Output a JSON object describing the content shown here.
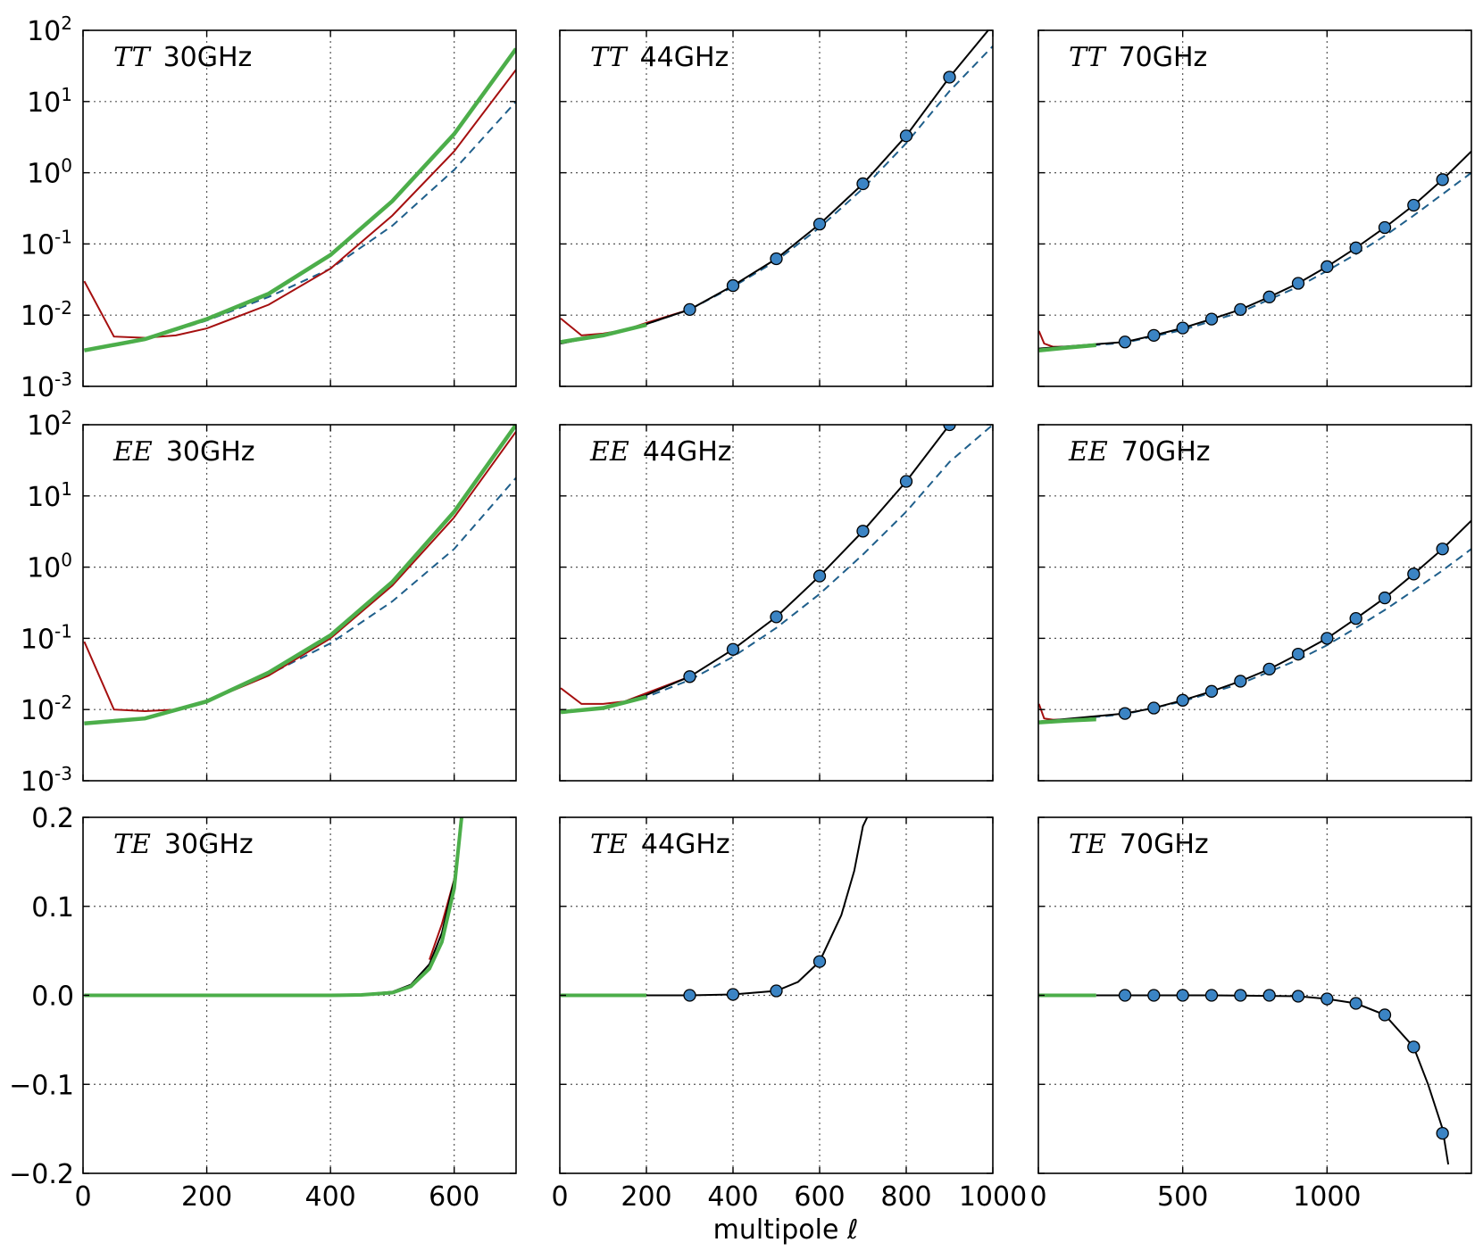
{
  "xlabel": "multipole ℓ",
  "colors": {
    "red_curve": "#a50f0f",
    "green_curve": "#4cae4a",
    "black_curve": "#000000",
    "dashed_curve": "#1f5f8b",
    "marker_fill": "#3b84c4",
    "grid": "#555555"
  },
  "chart_data": [
    {
      "type": "line",
      "spectrum": "TT",
      "freq": "30GHz",
      "row": 0,
      "col": 0,
      "yscale": "log",
      "ylim": [
        0.001,
        100
      ],
      "xlim": [
        0,
        700
      ],
      "xticks": [
        0,
        200,
        400,
        600
      ],
      "yticks": [
        0.001,
        0.01,
        0.1,
        1,
        10,
        100
      ],
      "curves": {
        "green": {
          "x": [
            2,
            100,
            200,
            300,
            400,
            500,
            600,
            700
          ],
          "y": [
            0.0032,
            0.0046,
            0.0088,
            0.02,
            0.07,
            0.4,
            3.5,
            55
          ]
        },
        "red": {
          "x": [
            2,
            50,
            100,
            150,
            200,
            300,
            400,
            500,
            600,
            700
          ],
          "y": [
            0.03,
            0.005,
            0.0048,
            0.0052,
            0.0065,
            0.014,
            0.045,
            0.25,
            2.0,
            28
          ]
        },
        "dashed": {
          "x": [
            2,
            100,
            200,
            300,
            400,
            500,
            600,
            700
          ],
          "y": [
            0.0032,
            0.0045,
            0.0084,
            0.018,
            0.045,
            0.18,
            1.1,
            10
          ]
        }
      },
      "markers": {
        "x": [],
        "y": []
      }
    },
    {
      "type": "line",
      "spectrum": "TT",
      "freq": "44GHz",
      "row": 0,
      "col": 1,
      "yscale": "log",
      "ylim": [
        0.001,
        100
      ],
      "xlim": [
        0,
        1000
      ],
      "xticks": [
        0,
        200,
        400,
        600,
        800,
        1000
      ],
      "yticks": [
        0.001,
        0.01,
        0.1,
        1,
        10,
        100
      ],
      "curves": {
        "black": {
          "x": [
            2,
            100,
            200,
            300,
            400,
            500,
            600,
            700,
            800,
            900,
            1000
          ],
          "y": [
            0.004,
            0.0052,
            0.0075,
            0.012,
            0.026,
            0.062,
            0.19,
            0.7,
            3.3,
            22,
            120
          ]
        },
        "red": {
          "x": [
            2,
            50,
            100,
            150,
            200,
            300
          ],
          "y": [
            0.009,
            0.0052,
            0.0055,
            0.0062,
            0.0078,
            0.012
          ]
        },
        "green": {
          "x": [
            2,
            100,
            200
          ],
          "y": [
            0.0042,
            0.0052,
            0.0073
          ]
        },
        "dashed": {
          "x": [
            2,
            100,
            200,
            300,
            400,
            500,
            600,
            700,
            800,
            900,
            1000
          ],
          "y": [
            0.0042,
            0.0053,
            0.0075,
            0.012,
            0.025,
            0.058,
            0.17,
            0.6,
            2.6,
            14,
            60
          ]
        }
      },
      "markers": {
        "x": [
          300,
          400,
          500,
          600,
          700,
          800,
          900
        ],
        "y": [
          0.012,
          0.026,
          0.062,
          0.19,
          0.7,
          3.3,
          22
        ]
      }
    },
    {
      "type": "line",
      "spectrum": "TT",
      "freq": "70GHz",
      "row": 0,
      "col": 2,
      "yscale": "log",
      "ylim": [
        0.001,
        100
      ],
      "xlim": [
        0,
        1500
      ],
      "xticks": [
        0,
        500,
        1000
      ],
      "yticks": [
        0.001,
        0.01,
        0.1,
        1,
        10,
        100
      ],
      "curves": {
        "black": {
          "x": [
            2,
            300,
            400,
            500,
            600,
            700,
            800,
            900,
            1000,
            1100,
            1200,
            1300,
            1400,
            1500
          ],
          "y": [
            0.0034,
            0.0042,
            0.0052,
            0.0066,
            0.0088,
            0.012,
            0.018,
            0.028,
            0.048,
            0.088,
            0.17,
            0.35,
            0.8,
            2.0
          ]
        },
        "red": {
          "x": [
            2,
            20,
            50,
            100
          ],
          "y": [
            0.006,
            0.004,
            0.0036,
            0.0036
          ]
        },
        "green": {
          "x": [
            2,
            100,
            200
          ],
          "y": [
            0.0032,
            0.0035,
            0.0038
          ]
        },
        "dashed": {
          "x": [
            2,
            300,
            500,
            700,
            900,
            1000,
            1100,
            1200,
            1300,
            1400,
            1500
          ],
          "y": [
            0.0033,
            0.0041,
            0.0062,
            0.011,
            0.025,
            0.042,
            0.072,
            0.13,
            0.25,
            0.5,
            1.0
          ]
        }
      },
      "markers": {
        "x": [
          300,
          400,
          500,
          600,
          700,
          800,
          900,
          1000,
          1100,
          1200,
          1300,
          1400
        ],
        "y": [
          0.0042,
          0.0052,
          0.0066,
          0.0088,
          0.012,
          0.018,
          0.028,
          0.048,
          0.088,
          0.17,
          0.35,
          0.8
        ]
      }
    },
    {
      "type": "line",
      "spectrum": "EE",
      "freq": "30GHz",
      "row": 1,
      "col": 0,
      "yscale": "log",
      "ylim": [
        0.001,
        100
      ],
      "xlim": [
        0,
        700
      ],
      "xticks": [
        0,
        200,
        400,
        600
      ],
      "yticks": [
        0.001,
        0.01,
        0.1,
        1,
        10,
        100
      ],
      "curves": {
        "green": {
          "x": [
            2,
            100,
            200,
            300,
            400,
            500,
            600,
            700
          ],
          "y": [
            0.0064,
            0.0075,
            0.013,
            0.033,
            0.11,
            0.62,
            6.0,
            100
          ]
        },
        "red": {
          "x": [
            2,
            50,
            100,
            150,
            200,
            300,
            400,
            500,
            600,
            700
          ],
          "y": [
            0.09,
            0.01,
            0.0095,
            0.01,
            0.013,
            0.03,
            0.1,
            0.55,
            5.0,
            80
          ]
        },
        "dashed": {
          "x": [
            2,
            100,
            200,
            300,
            400,
            500,
            600,
            700
          ],
          "y": [
            0.0064,
            0.0075,
            0.013,
            0.031,
            0.085,
            0.33,
            1.8,
            18
          ]
        }
      },
      "markers": {
        "x": [],
        "y": []
      }
    },
    {
      "type": "line",
      "spectrum": "EE",
      "freq": "44GHz",
      "row": 1,
      "col": 1,
      "yscale": "log",
      "ylim": [
        0.001,
        100
      ],
      "xlim": [
        0,
        1000
      ],
      "xticks": [
        0,
        200,
        400,
        600,
        800,
        1000
      ],
      "yticks": [
        0.001,
        0.01,
        0.1,
        1,
        10,
        100
      ],
      "curves": {
        "black": {
          "x": [
            2,
            100,
            200,
            300,
            400,
            500,
            600,
            700,
            800,
            900,
            950
          ],
          "y": [
            0.0095,
            0.0105,
            0.016,
            0.029,
            0.07,
            0.2,
            0.75,
            3.2,
            16,
            100,
            200
          ]
        },
        "red": {
          "x": [
            2,
            50,
            100,
            150,
            200,
            300
          ],
          "y": [
            0.02,
            0.012,
            0.012,
            0.013,
            0.017,
            0.029
          ]
        },
        "green": {
          "x": [
            2,
            100,
            200
          ],
          "y": [
            0.0092,
            0.0105,
            0.015
          ]
        },
        "dashed": {
          "x": [
            2,
            100,
            200,
            300,
            400,
            500,
            600,
            700,
            800,
            900,
            1000
          ],
          "y": [
            0.0095,
            0.0105,
            0.015,
            0.026,
            0.055,
            0.14,
            0.42,
            1.5,
            6,
            30,
            100
          ]
        }
      },
      "markers": {
        "x": [
          300,
          400,
          500,
          600,
          700,
          800,
          900
        ],
        "y": [
          0.029,
          0.07,
          0.2,
          0.75,
          3.2,
          16,
          100
        ]
      }
    },
    {
      "type": "line",
      "spectrum": "EE",
      "freq": "70GHz",
      "row": 1,
      "col": 2,
      "yscale": "log",
      "ylim": [
        0.001,
        100
      ],
      "xlim": [
        0,
        1500
      ],
      "xticks": [
        0,
        500,
        1000
      ],
      "yticks": [
        0.001,
        0.01,
        0.1,
        1,
        10,
        100
      ],
      "curves": {
        "black": {
          "x": [
            2,
            300,
            400,
            500,
            600,
            700,
            800,
            900,
            1000,
            1100,
            1200,
            1300,
            1400,
            1500
          ],
          "y": [
            0.0068,
            0.0088,
            0.0105,
            0.0135,
            0.018,
            0.025,
            0.037,
            0.06,
            0.1,
            0.19,
            0.37,
            0.8,
            1.8,
            4.5
          ]
        },
        "red": {
          "x": [
            2,
            20,
            50,
            100,
            200
          ],
          "y": [
            0.012,
            0.0075,
            0.0072,
            0.0072,
            0.0075
          ]
        },
        "green": {
          "x": [
            2,
            100,
            200
          ],
          "y": [
            0.0066,
            0.007,
            0.0073
          ]
        },
        "dashed": {
          "x": [
            2,
            300,
            500,
            700,
            900,
            1000,
            1100,
            1200,
            1300,
            1400,
            1500
          ],
          "y": [
            0.0066,
            0.0086,
            0.013,
            0.023,
            0.05,
            0.08,
            0.14,
            0.25,
            0.47,
            0.9,
            1.8
          ]
        }
      },
      "markers": {
        "x": [
          300,
          400,
          500,
          600,
          700,
          800,
          900,
          1000,
          1100,
          1200,
          1300,
          1400
        ],
        "y": [
          0.0088,
          0.0105,
          0.0135,
          0.018,
          0.025,
          0.037,
          0.06,
          0.1,
          0.19,
          0.37,
          0.8,
          1.8
        ]
      }
    },
    {
      "type": "line",
      "spectrum": "TE",
      "freq": "30GHz",
      "row": 2,
      "col": 0,
      "yscale": "linear",
      "ylim": [
        -0.2,
        0.2
      ],
      "xlim": [
        0,
        700
      ],
      "xticks": [
        0,
        200,
        400,
        600
      ],
      "yticks": [
        -0.2,
        -0.1,
        0.0,
        0.1,
        0.2
      ],
      "curves": {
        "green": {
          "x": [
            2,
            400,
            450,
            500,
            530,
            560,
            580,
            600,
            612
          ],
          "y": [
            0,
            0,
            0.0005,
            0.003,
            0.01,
            0.03,
            0.06,
            0.12,
            0.2
          ]
        },
        "black": {
          "x": [
            450,
            500,
            530,
            560,
            580,
            600,
            612
          ],
          "y": [
            0.001,
            0.004,
            0.012,
            0.035,
            0.07,
            0.13,
            0.2
          ]
        },
        "red": {
          "x": [
            560,
            580,
            600,
            612
          ],
          "y": [
            0.04,
            0.08,
            0.13,
            0.2
          ]
        }
      },
      "markers": {
        "x": [],
        "y": []
      }
    },
    {
      "type": "line",
      "spectrum": "TE",
      "freq": "44GHz",
      "row": 2,
      "col": 1,
      "yscale": "linear",
      "ylim": [
        -0.2,
        0.2
      ],
      "xlim": [
        0,
        1000
      ],
      "xticks": [
        0,
        200,
        400,
        600,
        800,
        1000
      ],
      "yticks": [
        -0.2,
        -0.1,
        0.0,
        0.1,
        0.2
      ],
      "curves": {
        "green": {
          "x": [
            2,
            200
          ],
          "y": [
            0,
            0
          ]
        },
        "black": {
          "x": [
            200,
            300,
            400,
            500,
            550,
            600,
            650,
            680,
            700,
            710
          ],
          "y": [
            0,
            0,
            0.001,
            0.005,
            0.015,
            0.038,
            0.09,
            0.14,
            0.19,
            0.2
          ]
        }
      },
      "markers": {
        "x": [
          300,
          400,
          500,
          600
        ],
        "y": [
          0,
          0.001,
          0.005,
          0.038
        ]
      }
    },
    {
      "type": "line",
      "spectrum": "TE",
      "freq": "70GHz",
      "row": 2,
      "col": 2,
      "yscale": "linear",
      "ylim": [
        -0.2,
        0.2
      ],
      "xlim": [
        0,
        1500
      ],
      "xticks": [
        0,
        500,
        1000
      ],
      "yticks": [
        -0.2,
        -0.1,
        0.0,
        0.1,
        0.2
      ],
      "curves": {
        "green": {
          "x": [
            2,
            200
          ],
          "y": [
            0,
            0
          ]
        },
        "black": {
          "x": [
            200,
            300,
            600,
            900,
            1000,
            1100,
            1200,
            1300,
            1350,
            1400,
            1420
          ],
          "y": [
            0,
            0,
            0,
            -0.001,
            -0.004,
            -0.009,
            -0.022,
            -0.058,
            -0.1,
            -0.15,
            -0.19
          ]
        }
      },
      "markers": {
        "x": [
          300,
          400,
          500,
          600,
          700,
          800,
          900,
          1000,
          1100,
          1200,
          1300,
          1400
        ],
        "y": [
          0,
          0,
          0,
          0,
          0,
          0,
          -0.001,
          -0.004,
          -0.009,
          -0.022,
          -0.058,
          -0.155
        ]
      }
    }
  ]
}
